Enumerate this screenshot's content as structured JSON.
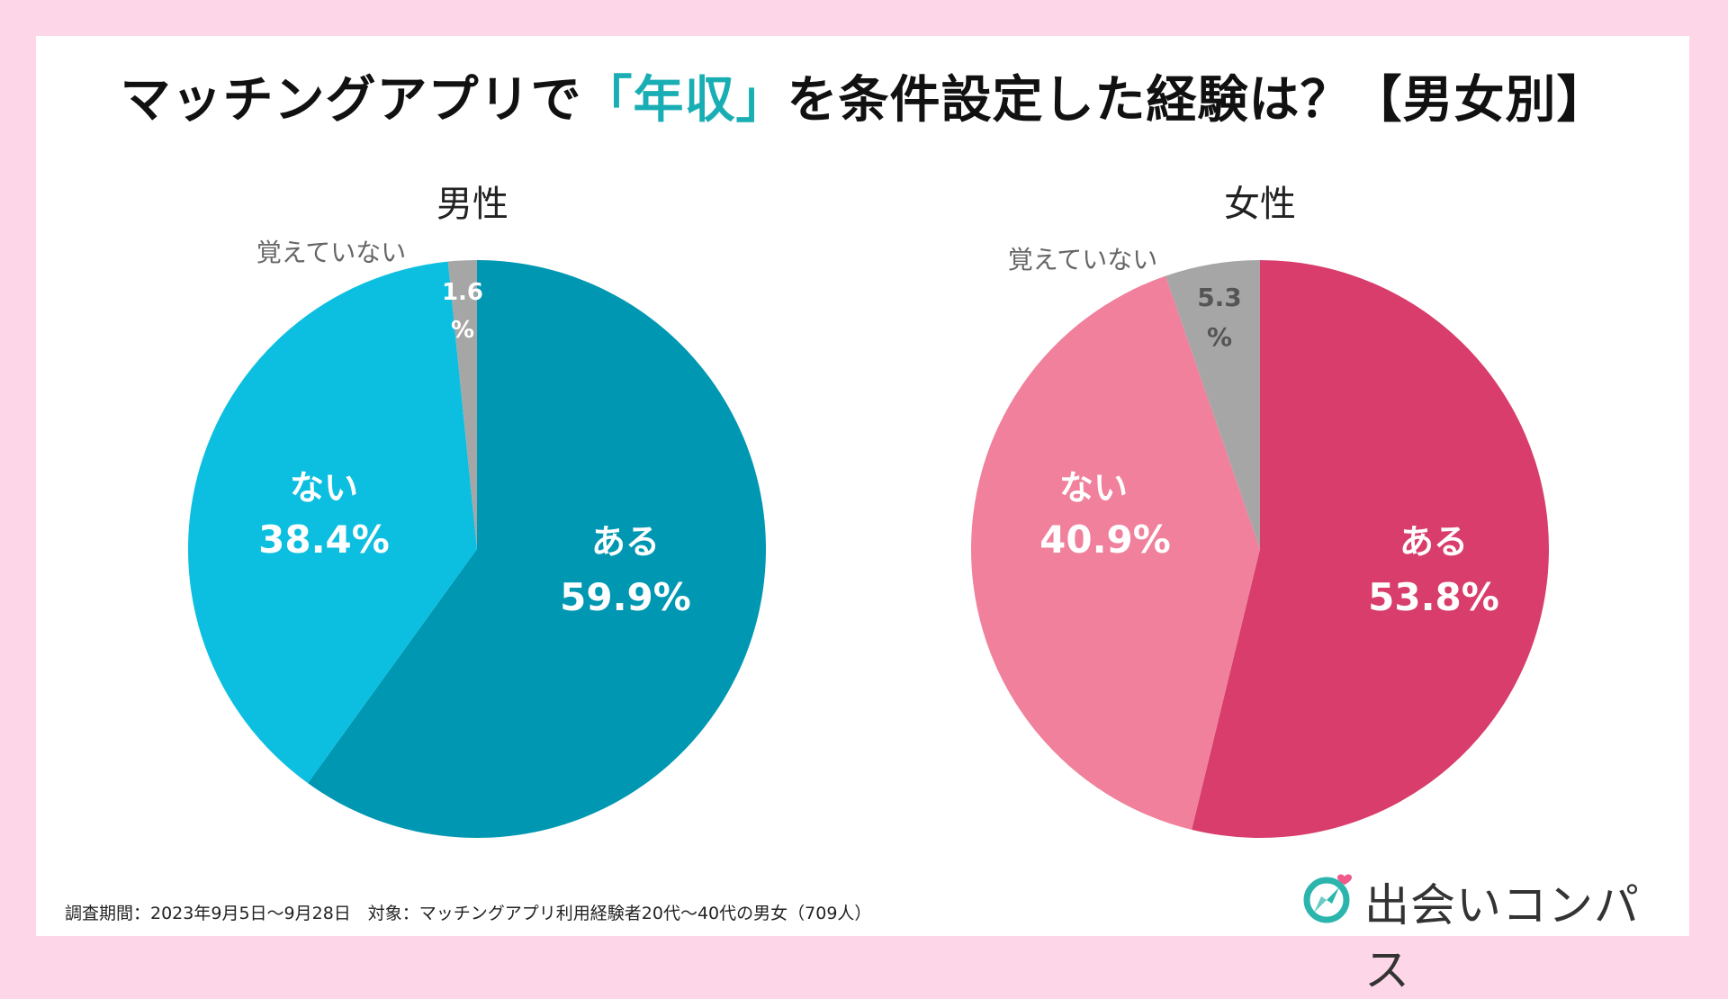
{
  "title": {
    "prefix": "マッチングアプリで",
    "highlight": "「年収」",
    "suffix": "を条件設定した経験は？【男女別】"
  },
  "colors": {
    "background": "#fdd7e8",
    "title_highlight": "#19aeb4",
    "male_yes": "#0097b2",
    "male_no": "#0cbfe0",
    "female_yes": "#d83d6b",
    "female_no": "#f0809b",
    "unknown": "#a6a6a6"
  },
  "chart_data": [
    {
      "type": "pie",
      "title": "男性",
      "slices": [
        {
          "label": "ある",
          "value": 59.9,
          "display": "59.9%"
        },
        {
          "label": "ない",
          "value": 38.4,
          "display": "38.4%"
        },
        {
          "label": "覚えていない",
          "value": 1.6,
          "display_line1": "1.6",
          "display_line2": "%"
        }
      ]
    },
    {
      "type": "pie",
      "title": "女性",
      "slices": [
        {
          "label": "ある",
          "value": 53.8,
          "display": "53.8%"
        },
        {
          "label": "ない",
          "value": 40.9,
          "display": "40.9%"
        },
        {
          "label": "覚えていない",
          "value": 5.3,
          "display_line1": "5.3",
          "display_line2": "%"
        }
      ]
    }
  ],
  "footnote": "調査期間：2023年9月5日〜9月28日　対象：マッチングアプリ利用経験者20代〜40代の男女（709人）",
  "logo": {
    "text": "出会いコンパス",
    "icon": "compass-heart-icon"
  }
}
